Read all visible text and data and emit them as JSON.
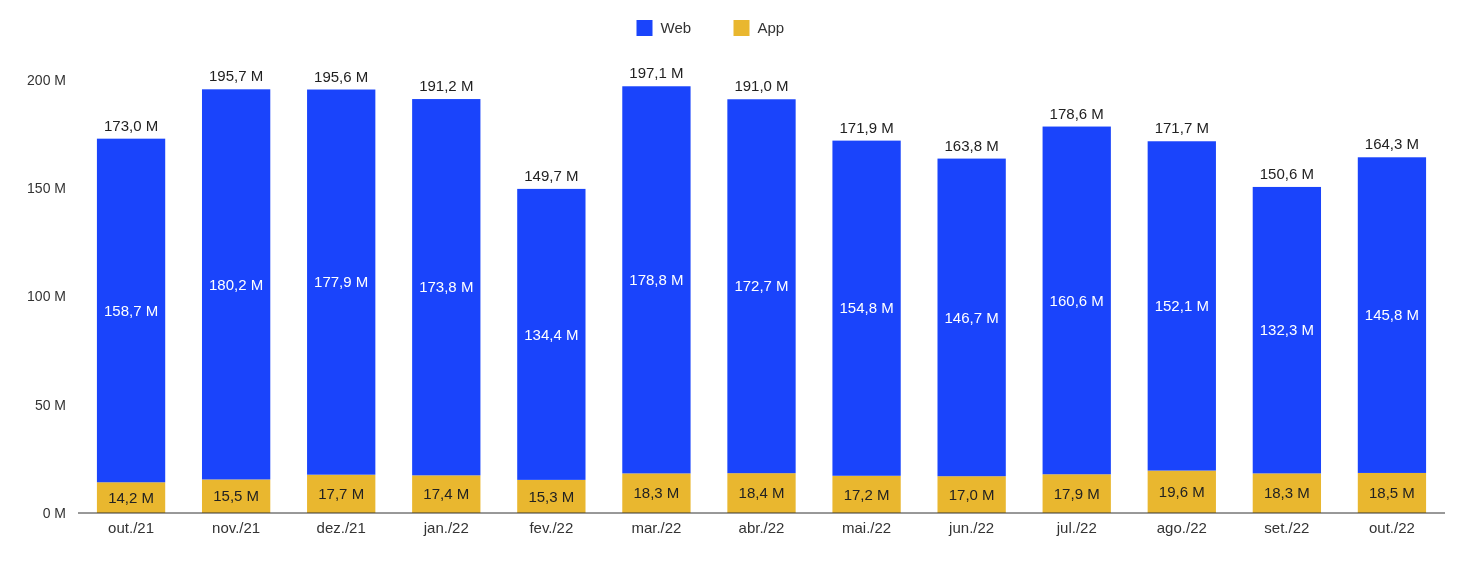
{
  "chart_data": {
    "type": "bar",
    "stacked": true,
    "categories": [
      "out./21",
      "nov./21",
      "dez./21",
      "jan./22",
      "fev./22",
      "mar./22",
      "abr./22",
      "mai./22",
      "jun./22",
      "jul./22",
      "ago./22",
      "set./22",
      "out./22"
    ],
    "series": [
      {
        "name": "App",
        "color": "#e9b72f",
        "values": [
          14.2,
          15.5,
          17.7,
          17.4,
          15.3,
          18.3,
          18.4,
          17.2,
          17.0,
          17.9,
          19.6,
          18.3,
          18.5
        ],
        "value_labels": [
          "14,2 M",
          "15,5 M",
          "17,7 M",
          "17,4 M",
          "15,3 M",
          "18,3 M",
          "18,4 M",
          "17,2 M",
          "17,0 M",
          "17,9 M",
          "19,6 M",
          "18,3 M",
          "18,5 M"
        ]
      },
      {
        "name": "Web",
        "color": "#1a44fb",
        "values": [
          158.7,
          180.2,
          177.9,
          173.8,
          134.4,
          178.8,
          172.7,
          154.8,
          146.7,
          160.6,
          152.1,
          132.3,
          145.8
        ],
        "value_labels": [
          "158,7 M",
          "180,2 M",
          "177,9 M",
          "173,8 M",
          "134,4 M",
          "178,8 M",
          "172,7 M",
          "154,8 M",
          "146,7 M",
          "160,6 M",
          "152,1 M",
          "132,3 M",
          "145,8 M"
        ]
      }
    ],
    "totals": [
      "173,0 M",
      "195,7 M",
      "195,6 M",
      "191,2 M",
      "149,7 M",
      "197,1 M",
      "191,0 M",
      "171,9 M",
      "163,8 M",
      "178,6 M",
      "171,7 M",
      "150,6 M",
      "164,3 M"
    ],
    "ylim": [
      0,
      200
    ],
    "yticks": [
      {
        "value": 0,
        "label": "0 M"
      },
      {
        "value": 50,
        "label": "50 M"
      },
      {
        "value": 100,
        "label": "100 M"
      },
      {
        "value": 150,
        "label": "150 M"
      },
      {
        "value": 200,
        "label": "200 M"
      }
    ],
    "legend": "top",
    "grid": false
  }
}
